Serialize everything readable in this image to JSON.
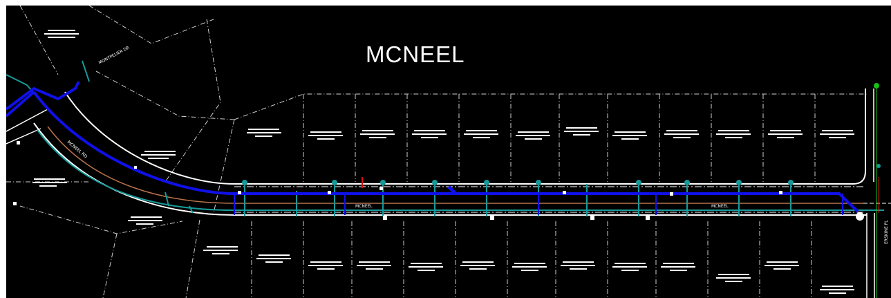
{
  "drawing": {
    "title": "MCNEEL",
    "street_labels": [
      "MONTPELIER DR",
      "MCNEEL RD",
      "MCNEEL",
      "MCNEEL",
      "ERSKINE PL"
    ]
  },
  "colors": {
    "background": "#000000",
    "page_border": "#ffffff",
    "water_main": "#1010e8",
    "service_lines": "#169a9a",
    "edge_of_pavement": "#ffffff",
    "centerline": "#b8734a",
    "lot_lines": "#d0d0d0",
    "sewer_marker": "#d01010",
    "north_marker": "#18c018"
  }
}
